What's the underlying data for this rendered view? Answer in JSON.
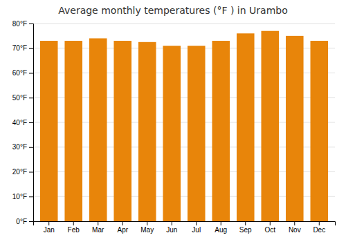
{
  "chart_data": {
    "type": "bar",
    "title": "Average monthly temperatures (°F ) in Urambo",
    "categories": [
      "Jan",
      "Feb",
      "Mar",
      "Apr",
      "May",
      "Jun",
      "Jul",
      "Aug",
      "Sep",
      "Oct",
      "Nov",
      "Dec"
    ],
    "values": [
      73.0,
      73.0,
      74.0,
      73.0,
      72.5,
      71.0,
      71.0,
      73.0,
      76.0,
      77.0,
      75.0,
      73.0
    ],
    "color": "#E8850A",
    "ylim": [
      0,
      80
    ],
    "yticks": [
      {
        "value": 0,
        "label": "0°F"
      },
      {
        "value": 10,
        "label": "10°F"
      },
      {
        "value": 20,
        "label": "20°F"
      },
      {
        "value": 30,
        "label": "30°F"
      },
      {
        "value": 40,
        "label": "40°F"
      },
      {
        "value": 50,
        "label": "50°F"
      },
      {
        "value": 60,
        "label": "60°F"
      },
      {
        "value": 70,
        "label": "70°F"
      },
      {
        "value": 80,
        "label": "80°F"
      }
    ],
    "grid": true
  }
}
